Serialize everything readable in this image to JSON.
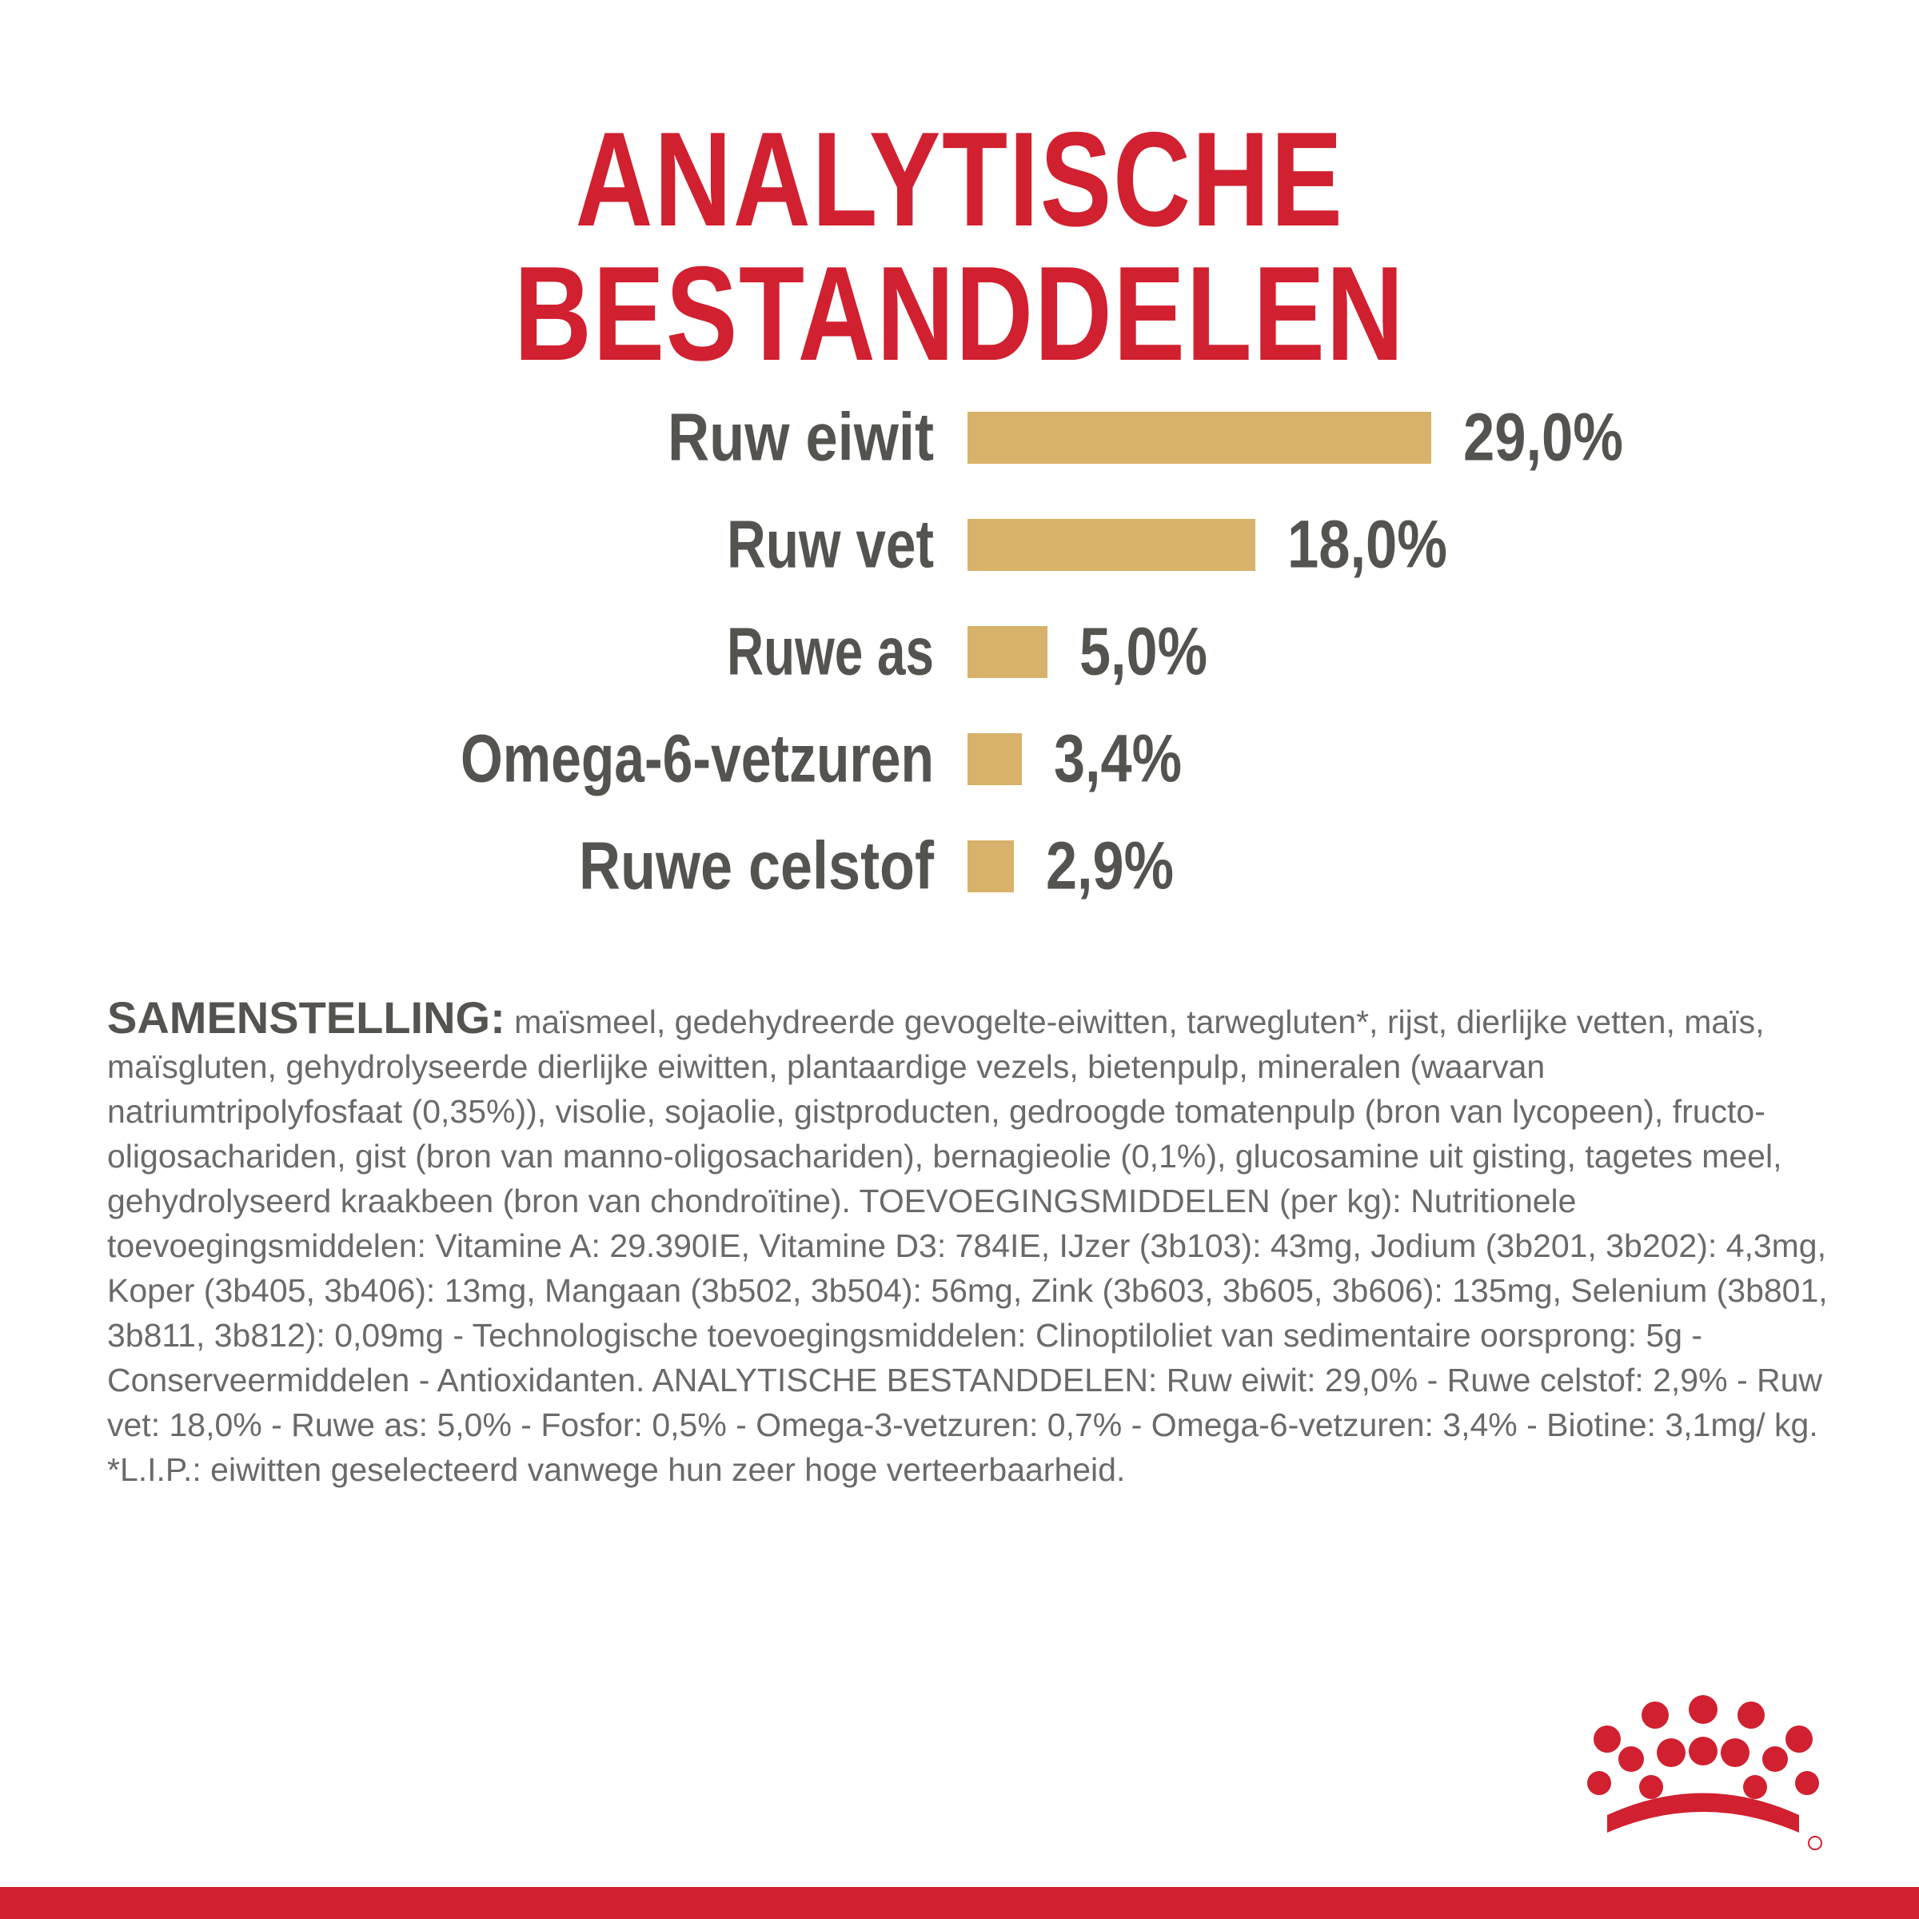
{
  "title": "ANALYTISCHE BESTANDDELEN",
  "chart_data": {
    "type": "bar",
    "orientation": "horizontal",
    "categories": [
      "Ruw eiwit",
      "Ruw vet",
      "Ruwe as",
      "Omega-6-vetzuren",
      "Ruwe celstof"
    ],
    "values": [
      29.0,
      18.0,
      5.0,
      3.4,
      2.9
    ],
    "value_labels": [
      "29,0%",
      "18,0%",
      "5,0%",
      "3,4%",
      "2,9%"
    ],
    "unit": "%",
    "bar_color": "#d8b26a",
    "text_color": "#55534f"
  },
  "composition": {
    "lead": "SAMENSTELLING:",
    "text": " maïsmeel, gedehydreerde gevogelte-eiwitten, tarwegluten*, rijst, dierlijke vetten, maïs, maïsgluten, gehydrolyseerde dierlijke eiwitten, plantaardige vezels, bietenpulp, mineralen (waarvan natriumtripolyfosfaat (0,35%)), visolie, sojaolie, gistproducten, gedroogde tomatenpulp (bron van lycopeen), fructo-oligosachariden, gist (bron van manno-oligosachariden), bernagieolie (0,1%), glucosamine uit gisting, tagetes meel, gehydrolyseerd kraakbeen (bron van chondroïtine). TOEVOEGINGSMIDDELEN (per kg): Nutritionele toevoegingsmiddelen: Vitamine A: 29.390IE, Vitamine D3: 784IE, IJzer (3b103): 43mg, Jodium (3b201, 3b202): 4,3mg, Koper (3b405, 3b406): 13mg, Mangaan (3b502, 3b504): 56mg, Zink (3b603, 3b605, 3b606): 135mg, Selenium (3b801, 3b811, 3b812): 0,09mg - Technologische toevoegingsmiddelen: Clinoptiloliet van sedimentaire oorsprong: 5g - Conserveermiddelen - Antioxidanten. ANALYTISCHE BESTANDDELEN: Ruw eiwit: 29,0% - Ruwe celstof: 2,9% - Ruw vet: 18,0% - Ruwe as: 5,0% - Fosfor: 0,5% - Omega-3-vetzuren: 0,7% - Omega-6-vetzuren: 3,4% - Biotine: 3,1mg/ kg. *L.I.P.: eiwitten geselecteerd vanwege hun zeer hoge verteerbaarheid."
  },
  "logo": {
    "name": "royal-canin-crown-logo",
    "color": "#d1202f"
  },
  "accent_color": "#d1202f"
}
